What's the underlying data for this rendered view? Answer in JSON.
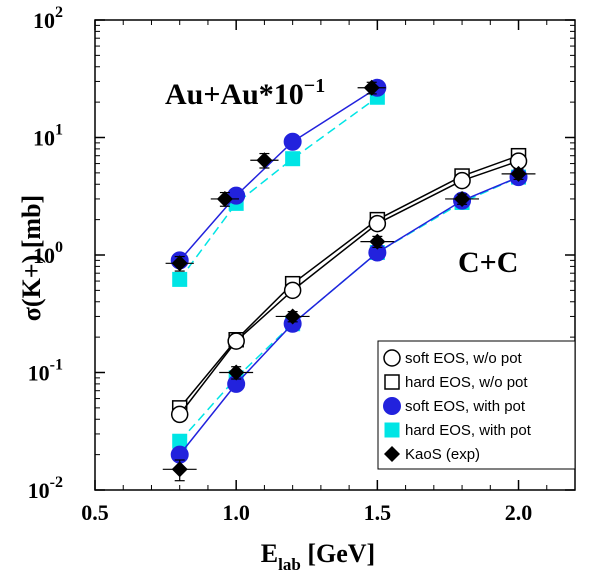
{
  "chart_data": {
    "type": "line",
    "xlabel": "E",
    "xlabel_sub": "lab",
    "xlabel_unit": " [GeV]",
    "ylabel": "σ(K+) [mb]",
    "xlim": [
      0.5,
      2.2
    ],
    "ylim": [
      0.01,
      100
    ],
    "yscale": "log",
    "x_ticks": [
      "0.5",
      "1.0",
      "1.5",
      "2.0"
    ],
    "y_ticks": [
      {
        "base": "10",
        "exp": "-2"
      },
      {
        "base": "10",
        "exp": "-1"
      },
      {
        "base": "10",
        "exp": "0"
      },
      {
        "base": "10",
        "exp": "1"
      },
      {
        "base": "10",
        "exp": "2"
      }
    ],
    "annotations": {
      "auau": {
        "text": "Au+Au*10",
        "exp": "−1"
      },
      "cc": "C+C"
    },
    "legend_position": "bottom-right",
    "series": [
      {
        "name": "soft EOS, w/o pot",
        "group": "CC",
        "marker": "circle-open",
        "color": "#000000",
        "line": "solid",
        "x": [
          0.8,
          1.0,
          1.2,
          1.5,
          1.8,
          2.0
        ],
        "y": [
          0.044,
          0.185,
          0.5,
          1.85,
          4.3,
          6.3
        ]
      },
      {
        "name": "hard EOS, w/o pot",
        "group": "CC",
        "marker": "square-open",
        "color": "#000000",
        "line": "solid",
        "x": [
          0.8,
          1.0,
          1.2,
          1.5,
          1.8,
          2.0
        ],
        "y": [
          0.05,
          0.19,
          0.57,
          2.0,
          4.7,
          7.0
        ]
      },
      {
        "name": "soft EOS, with pot",
        "group": "CC",
        "marker": "circle-filled",
        "color": "#2222dd",
        "line": "solid",
        "x": [
          0.8,
          1.0,
          1.2,
          1.5,
          1.8,
          2.0
        ],
        "y": [
          0.02,
          0.08,
          0.26,
          1.05,
          2.9,
          4.6
        ]
      },
      {
        "name": "hard EOS, with pot",
        "group": "CC",
        "marker": "square-filled",
        "color": "#00e5e5",
        "line": "dashed",
        "x": [
          0.8,
          1.0,
          1.2,
          1.5,
          1.8,
          2.0
        ],
        "y": [
          0.026,
          0.09,
          0.26,
          1.05,
          2.8,
          4.6
        ]
      },
      {
        "name": "KaoS (exp)",
        "group": "CC",
        "marker": "diamond",
        "color": "#000000",
        "line": "none",
        "x": [
          0.8,
          1.0,
          1.2,
          1.5,
          1.8,
          2.0
        ],
        "y": [
          0.015,
          0.1,
          0.3,
          1.3,
          3.0,
          4.9
        ],
        "xerr": [
          0.06,
          0.06,
          0.06,
          0.06,
          0.06,
          0.06
        ],
        "yerr_lo": [
          0.003,
          0.012,
          0.03,
          0.14,
          0.3,
          0.5
        ],
        "yerr_hi": [
          0.003,
          0.012,
          0.03,
          0.14,
          0.3,
          0.5
        ]
      },
      {
        "group": "AuAu",
        "marker": "circle-filled",
        "color": "#2222dd",
        "line": "solid",
        "x": [
          0.8,
          1.0,
          1.2,
          1.5
        ],
        "y": [
          0.9,
          3.2,
          9.2,
          26.5
        ]
      },
      {
        "group": "AuAu",
        "marker": "square-filled",
        "color": "#00e5e5",
        "line": "dashed",
        "x": [
          0.8,
          1.0,
          1.2,
          1.5
        ],
        "y": [
          0.62,
          2.75,
          6.6,
          22.0
        ]
      },
      {
        "group": "AuAu",
        "marker": "diamond",
        "color": "#000000",
        "line": "none",
        "x": [
          0.8,
          0.96,
          1.1,
          1.48
        ],
        "y": [
          0.85,
          3.0,
          6.4,
          26.5
        ],
        "xerr": [
          0.05,
          0.05,
          0.05,
          0.05
        ],
        "yerr_lo": [
          0.12,
          0.4,
          0.9,
          3.0
        ],
        "yerr_hi": [
          0.12,
          0.4,
          0.9,
          3.0
        ]
      }
    ]
  }
}
